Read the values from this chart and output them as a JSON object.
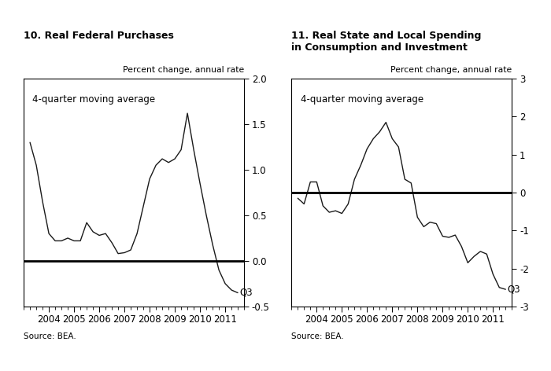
{
  "chart1": {
    "title": "10. Real Federal Purchases",
    "ylabel": "Percent change, annual rate",
    "annotation": "4-quarter moving average",
    "q3_label": "Q3",
    "source": "Source: BEA.",
    "ylim": [
      -0.5,
      2.0
    ],
    "yticks": [
      -0.5,
      0.0,
      0.5,
      1.0,
      1.5,
      2.0
    ],
    "ytick_labels": [
      "-0.5",
      "0.0",
      "0.5",
      "1.0",
      "1.5",
      "2.0"
    ],
    "hline": 0.0,
    "x": [
      2003.25,
      2003.5,
      2003.75,
      2004.0,
      2004.25,
      2004.5,
      2004.75,
      2005.0,
      2005.25,
      2005.5,
      2005.75,
      2006.0,
      2006.25,
      2006.5,
      2006.75,
      2007.0,
      2007.25,
      2007.5,
      2007.75,
      2008.0,
      2008.25,
      2008.5,
      2008.75,
      2009.0,
      2009.25,
      2009.5,
      2009.75,
      2010.0,
      2010.25,
      2010.5,
      2010.75,
      2011.0,
      2011.25,
      2011.5
    ],
    "y": [
      1.3,
      1.05,
      0.65,
      0.3,
      0.22,
      0.22,
      0.25,
      0.22,
      0.22,
      0.42,
      0.32,
      0.28,
      0.3,
      0.2,
      0.08,
      0.09,
      0.12,
      0.3,
      0.6,
      0.9,
      1.05,
      1.12,
      1.08,
      1.12,
      1.22,
      1.62,
      1.22,
      0.85,
      0.5,
      0.18,
      -0.1,
      -0.25,
      -0.32,
      -0.35
    ]
  },
  "chart2": {
    "title": "11. Real State and Local Spending\nin Consumption and Investment",
    "ylabel": "Percent change, annual rate",
    "annotation": "4-quarter moving average",
    "q3_label": "Q3",
    "source": "Source: BEA.",
    "ylim": [
      -3.0,
      3.0
    ],
    "yticks": [
      -3,
      -2,
      -1,
      0,
      1,
      2,
      3
    ],
    "ytick_labels": [
      "-3",
      "-2",
      "-1",
      "0",
      "1",
      "2",
      "3"
    ],
    "hline": 0.0,
    "x": [
      2003.25,
      2003.5,
      2003.75,
      2004.0,
      2004.25,
      2004.5,
      2004.75,
      2005.0,
      2005.25,
      2005.5,
      2005.75,
      2006.0,
      2006.25,
      2006.5,
      2006.75,
      2007.0,
      2007.25,
      2007.5,
      2007.75,
      2008.0,
      2008.25,
      2008.5,
      2008.75,
      2009.0,
      2009.25,
      2009.5,
      2009.75,
      2010.0,
      2010.25,
      2010.5,
      2010.75,
      2011.0,
      2011.25,
      2011.5
    ],
    "y": [
      -0.15,
      -0.3,
      0.28,
      0.28,
      -0.35,
      -0.52,
      -0.48,
      -0.55,
      -0.3,
      0.35,
      0.72,
      1.15,
      1.42,
      1.6,
      1.85,
      1.42,
      1.2,
      0.35,
      0.25,
      -0.65,
      -0.9,
      -0.78,
      -0.82,
      -1.15,
      -1.18,
      -1.12,
      -1.42,
      -1.85,
      -1.68,
      -1.55,
      -1.62,
      -2.15,
      -2.5,
      -2.55
    ]
  },
  "xlim": [
    2003.0,
    2011.75
  ],
  "xticks": [
    2004,
    2005,
    2006,
    2007,
    2008,
    2009,
    2010,
    2011
  ],
  "line_color": "#1a1a1a",
  "hline_color": "#000000",
  "bg_color": "#ffffff",
  "tick_label_color": "#000000",
  "ylabel_color": "#000000",
  "title_color": "#000000",
  "annotation_color": "#000000",
  "source_color": "#000000",
  "font_size": 8.5,
  "title_font_size": 9.0,
  "ylabel_font_size": 7.8,
  "source_font_size": 7.5
}
